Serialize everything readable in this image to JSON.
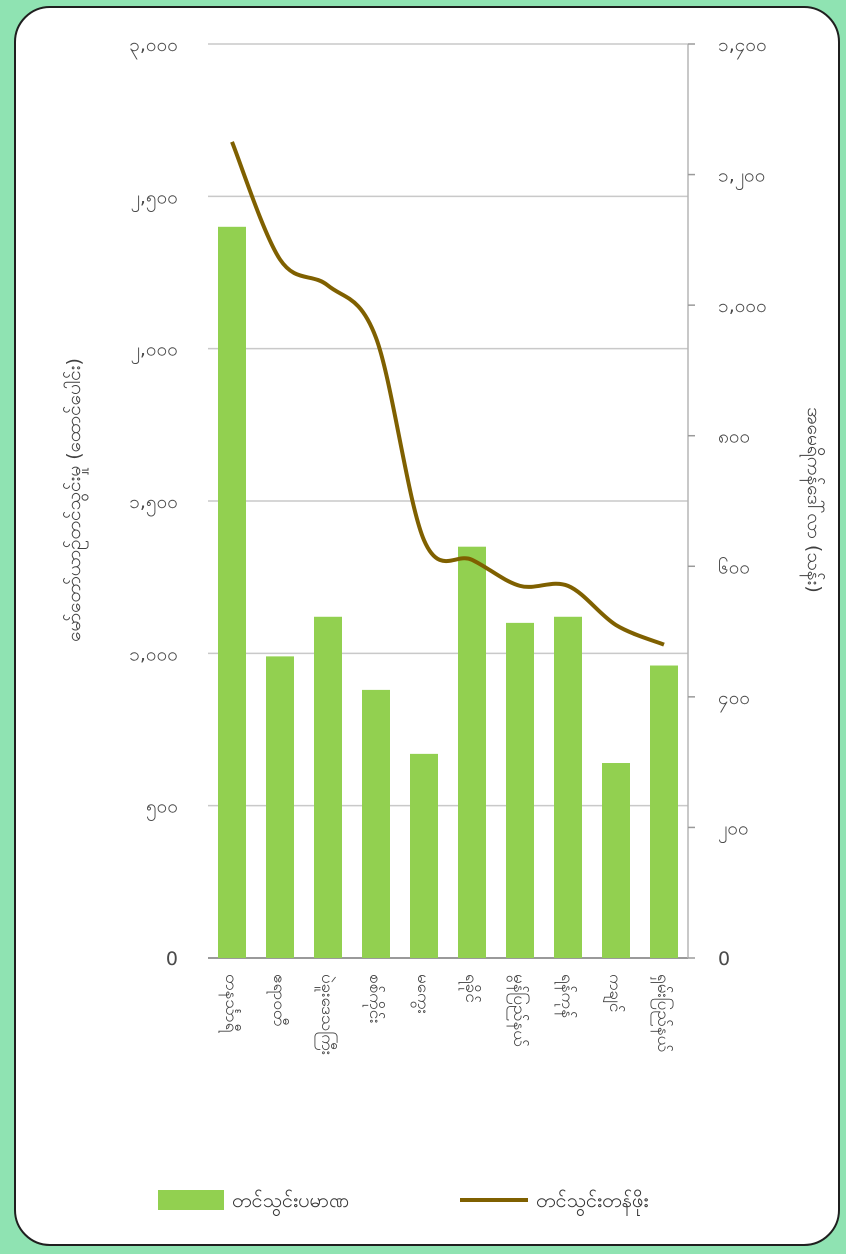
{
  "chart_data": {
    "type": "bar",
    "orientation": "rotated-90",
    "title": "",
    "categories": [
      "တနင်္သာရီ",
      "ဧရာဝတီ",
      "ပဲခူးဒေသကြီး",
      "စစ်ကိုင်း",
      "မကွေး",
      "ရခိုင်",
      "မွန်ပြည်နယ်",
      "ရန်ကုန်",
      "ကချင်",
      "ရှမ်းပြည်နယ်"
    ],
    "series": [
      {
        "name": "တင်သွင်းပမာဏ",
        "axis": "left",
        "color": "#92d050",
        "values": [
          2400,
          990,
          1120,
          880,
          670,
          1350,
          1100,
          1120,
          640,
          960
        ]
      },
      {
        "name": "တင်သွင်းတန်ဖိုး",
        "axis": "right",
        "color": "#7f6000",
        "values": [
          1250,
          1070,
          1030,
          950,
          640,
          610,
          570,
          570,
          510,
          480
        ]
      }
    ],
    "y_left": {
      "label": "မော်တော်ယာဉ်တင်သွင်းမှု (ထောင်ပေါင်း)",
      "ylim": [
        0,
        3000
      ],
      "ticks": [
        "0",
        "၅၀၀",
        "၁,၀၀၀",
        "၁,၅၀၀",
        "၂,၀၀၀",
        "၂,၅၀၀",
        "၃,၀၀၀"
      ]
    },
    "y_right": {
      "label": "အမေရိကန်ဒေါ်လာ (သန်း)",
      "ylim": [
        0,
        1400
      ],
      "ticks": [
        "0",
        "၂၀၀",
        "၄၀၀",
        "၆၀၀",
        "၈၀၀",
        "၁,၀၀၀",
        "၁,၂၀၀",
        "၁,၄၀၀"
      ]
    },
    "grid": true,
    "legend": "bottom"
  }
}
